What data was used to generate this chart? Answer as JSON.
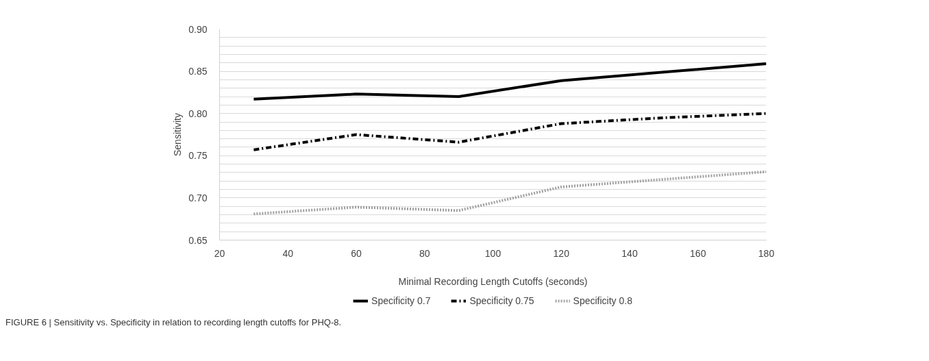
{
  "chart_data": {
    "type": "line",
    "xlabel": "Minimal Recording Length Cutoffs (seconds)",
    "ylabel": "Sensitivity",
    "x": [
      30,
      60,
      90,
      120,
      150,
      180
    ],
    "series": [
      {
        "name": "Specificity 0.7",
        "color": "#000000",
        "line_style": "solid",
        "values": [
          0.817,
          0.823,
          0.82,
          0.839,
          0.849,
          0.859
        ]
      },
      {
        "name": "Specificity 0.75",
        "color": "#000000",
        "line_style": "dashdot",
        "values": [
          0.757,
          0.775,
          0.766,
          0.788,
          0.795,
          0.8
        ]
      },
      {
        "name": "Specificity 0.8",
        "color": "#a0a0a0",
        "line_style": "dotted",
        "values": [
          0.681,
          0.689,
          0.685,
          0.713,
          0.722,
          0.731
        ]
      }
    ],
    "xlim": [
      20,
      180
    ],
    "xticks": [
      20,
      40,
      60,
      80,
      100,
      120,
      140,
      160,
      180
    ],
    "ylim": [
      0.65,
      0.9
    ],
    "yticks": [
      0.65,
      {
        "value": 0.66,
        "label": null
      },
      {
        "value": 0.67,
        "label": null
      },
      {
        "value": 0.68,
        "label": null
      },
      {
        "value": 0.69,
        "label": null
      },
      {
        "value": 0.7,
        "label": "0.70"
      },
      {
        "value": 0.71,
        "label": null
      },
      {
        "value": 0.72,
        "label": null
      },
      {
        "value": 0.73,
        "label": null
      },
      {
        "value": 0.74,
        "label": null
      },
      {
        "value": 0.75,
        "label": "0.75"
      },
      {
        "value": 0.76,
        "label": null
      },
      {
        "value": 0.77,
        "label": null
      },
      {
        "value": 0.78,
        "label": null
      },
      {
        "value": 0.79,
        "label": null
      },
      {
        "value": 0.8,
        "label": "0.80"
      },
      {
        "value": 0.81,
        "label": null
      },
      {
        "value": 0.82,
        "label": null
      },
      {
        "value": 0.83,
        "label": null
      },
      {
        "value": 0.84,
        "label": null
      },
      {
        "value": 0.85,
        "label": "0.85"
      },
      {
        "value": 0.86,
        "label": null
      },
      {
        "value": 0.87,
        "label": null
      },
      {
        "value": 0.88,
        "label": null
      },
      {
        "value": 0.89,
        "label": null
      },
      {
        "value": 0.9,
        "label": "0.90"
      }
    ],
    "grid": "y",
    "legend": "bottom",
    "annotations": [
      "FIGURE 6 | Sensitivity vs. Specificity in relation to recording length cutoffs for PHQ-8."
    ]
  }
}
